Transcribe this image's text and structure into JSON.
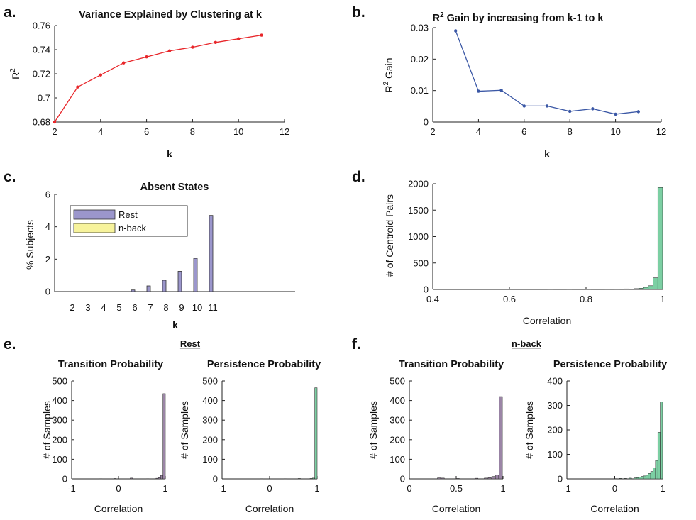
{
  "chart_data": [
    {
      "panel": "a.",
      "type": "line",
      "title": "Variance Explained by Clustering at k",
      "xlabel": "k",
      "ylabel": "R",
      "ylabel_sup": "2",
      "xlim": [
        2,
        12
      ],
      "ylim": [
        0.68,
        0.76
      ],
      "xticks": [
        "2",
        "4",
        "6",
        "8",
        "10",
        "12"
      ],
      "yticks": [
        "0.68",
        "0.7",
        "0.72",
        "0.74",
        "0.76"
      ],
      "color": "#e8262a",
      "x": [
        2,
        3,
        4,
        5,
        6,
        7,
        8,
        9,
        10,
        11
      ],
      "y": [
        0.68,
        0.709,
        0.719,
        0.729,
        0.734,
        0.739,
        0.742,
        0.746,
        0.749,
        0.752
      ]
    },
    {
      "panel": "b.",
      "type": "line",
      "title": "R",
      "title_sup": "2",
      "title_rest": " Gain by increasing from k-1 to k",
      "xlabel": "k",
      "ylabel": "R",
      "ylabel_sup": "2",
      "ylabel_rest": " Gain",
      "xlim": [
        2,
        12
      ],
      "ylim": [
        0,
        0.03
      ],
      "xticks": [
        "2",
        "4",
        "6",
        "8",
        "10",
        "12"
      ],
      "yticks": [
        "0",
        "0.01",
        "0.02",
        "0.03"
      ],
      "color": "#3a57a5",
      "x": [
        3,
        4,
        5,
        6,
        7,
        8,
        9,
        10,
        11
      ],
      "y": [
        0.029,
        0.0098,
        0.0101,
        0.0051,
        0.0051,
        0.0034,
        0.0042,
        0.0025,
        0.0033
      ]
    },
    {
      "panel": "c.",
      "type": "bar",
      "title": "Absent States",
      "xlabel": "k",
      "ylabel": "% Subjects",
      "ylim": [
        0,
        6
      ],
      "yticks": [
        "0",
        "2",
        "4",
        "6"
      ],
      "categories": [
        "2",
        "3",
        "4",
        "5",
        "6",
        "7",
        "8",
        "9",
        "10",
        "11"
      ],
      "series": [
        {
          "name": "Rest",
          "color": "#9b96cc",
          "values": [
            0,
            0,
            0,
            0,
            0.1,
            0.35,
            0.7,
            1.25,
            2.05,
            4.7
          ]
        },
        {
          "name": "n-back",
          "color": "#f7f39c",
          "values": [
            0,
            0,
            0,
            0,
            0,
            0,
            0,
            0,
            0,
            0
          ]
        }
      ],
      "legend": "top-left"
    },
    {
      "panel": "d.",
      "type": "histogram",
      "xlabel": "Correlation",
      "ylabel": "# of Centroid Pairs",
      "xlim": [
        0.4,
        1
      ],
      "ylim": [
        0,
        2000
      ],
      "xticks": [
        "0.4",
        "0.6",
        "0.8",
        "1"
      ],
      "yticks": [
        "0",
        "500",
        "1000",
        "1500",
        "2000"
      ],
      "color": "#7ccfa3",
      "bin_width": 0.0125,
      "bin_left_edges": [
        0.7,
        0.75,
        0.8,
        0.85,
        0.875,
        0.9,
        0.925,
        0.9375,
        0.95,
        0.9625,
        0.975,
        0.9875
      ],
      "counts": [
        2,
        3,
        4,
        6,
        8,
        10,
        15,
        22,
        40,
        70,
        220,
        1930
      ]
    },
    {
      "panel": "e.",
      "group_label": "Rest",
      "type": "histogram",
      "title": "Transition Probability",
      "xlabel": "Correlation",
      "ylabel": "# of Samples",
      "xlim": [
        -1,
        1
      ],
      "ylim": [
        0,
        500
      ],
      "xticks": [
        "-1",
        "0",
        "1"
      ],
      "yticks": [
        "0",
        "100",
        "200",
        "300",
        "400",
        "500"
      ],
      "color": "#9b85a6",
      "bin_width": 0.05,
      "bin_left_edges": [
        -0.4,
        -0.1,
        0.25,
        0.6,
        0.8,
        0.85,
        0.9,
        0.95
      ],
      "counts": [
        1,
        2,
        4,
        1,
        3,
        6,
        18,
        435
      ]
    },
    {
      "type": "histogram",
      "title": "Persistence Probability",
      "xlabel": "Correlation",
      "ylabel": "# of Samples",
      "xlim": [
        -1,
        1
      ],
      "ylim": [
        0,
        500
      ],
      "xticks": [
        "-1",
        "0",
        "1"
      ],
      "yticks": [
        "0",
        "100",
        "200",
        "300",
        "400",
        "500"
      ],
      "color": "#7ccfa3",
      "bin_width": 0.05,
      "bin_left_edges": [
        -0.2,
        0.3,
        0.6,
        0.85,
        0.9,
        0.95
      ],
      "counts": [
        1,
        1,
        2,
        2,
        4,
        465
      ]
    },
    {
      "panel": "f.",
      "group_label": "n-back",
      "type": "histogram",
      "title": "Transition Probability",
      "xlabel": "Correlation",
      "ylabel": "# of Samples",
      "xlim": [
        0,
        1
      ],
      "ylim": [
        0,
        500
      ],
      "xticks": [
        "0",
        "0.5",
        "1"
      ],
      "yticks": [
        "0",
        "100",
        "200",
        "300",
        "400",
        "500"
      ],
      "color": "#9b85a6",
      "bin_width": 0.033,
      "bin_left_edges": [
        0.3,
        0.34,
        0.5,
        0.7,
        0.8,
        0.84,
        0.88,
        0.92,
        0.96
      ],
      "counts": [
        5,
        4,
        2,
        3,
        4,
        6,
        12,
        20,
        420
      ]
    },
    {
      "type": "histogram",
      "title": "Persistence Probability",
      "xlabel": "Correlation",
      "ylabel": "# of Samples",
      "xlim": [
        -1,
        1
      ],
      "ylim": [
        0,
        400
      ],
      "xticks": [
        "-1",
        "0",
        "1"
      ],
      "yticks": [
        "0",
        "100",
        "200",
        "300",
        "400"
      ],
      "color": "#7ccfa3",
      "bin_width": 0.05,
      "bin_left_edges": [
        0,
        0.1,
        0.2,
        0.3,
        0.4,
        0.45,
        0.5,
        0.55,
        0.6,
        0.65,
        0.7,
        0.75,
        0.8,
        0.85,
        0.9,
        0.95
      ],
      "counts": [
        1,
        2,
        2,
        3,
        4,
        5,
        7,
        10,
        12,
        15,
        22,
        30,
        45,
        75,
        190,
        315
      ]
    }
  ]
}
